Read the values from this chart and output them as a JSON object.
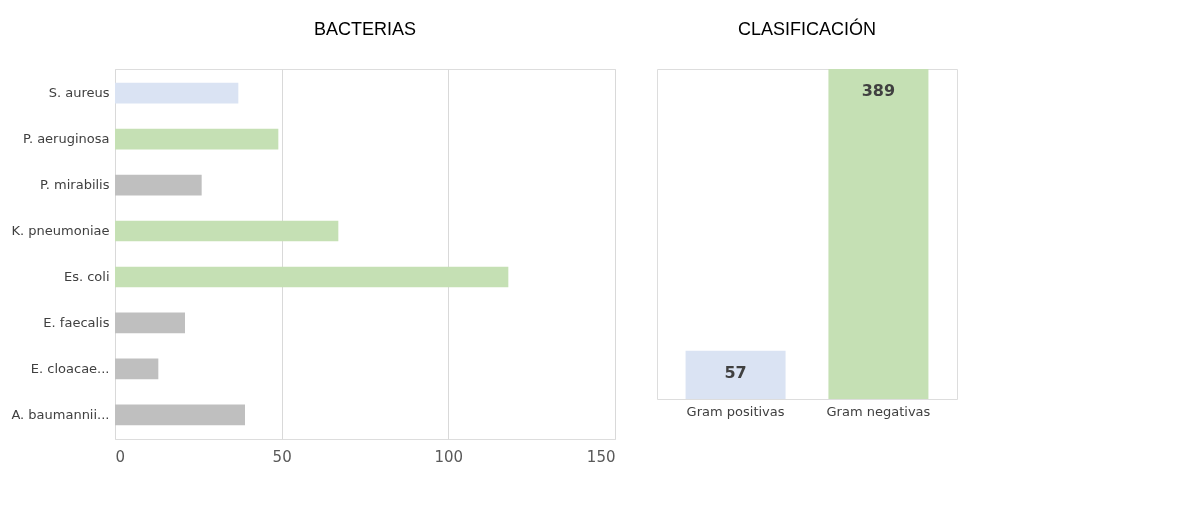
{
  "chart_data": [
    {
      "type": "bar",
      "title": "BACTERIAS",
      "orientation": "horizontal",
      "categories": [
        "S. aureus",
        "P. aeruginosa",
        "P. mirabilis",
        "K. pneumoniae",
        "Es. coli",
        "E. faecalis",
        "E. cloacae...",
        "A. baumannii..."
      ],
      "values": [
        37,
        49,
        26,
        67,
        118,
        21,
        13,
        39
      ],
      "colors": [
        "#dae3f3",
        "#c5e0b4",
        "#bfbfbf",
        "#c5e0b4",
        "#c5e0b4",
        "#bfbfbf",
        "#bfbfbf",
        "#bfbfbf"
      ],
      "xlim": [
        0,
        150
      ],
      "xticks": [
        0,
        50,
        100,
        150
      ],
      "grid": "x",
      "legend": false
    },
    {
      "type": "bar",
      "title": "CLASIFICACIÓN",
      "categories": [
        "Gram positivas",
        "Gram negativas"
      ],
      "values": [
        57,
        389
      ],
      "colors": [
        "#dae3f3",
        "#c5e0b4"
      ],
      "data_labels": true,
      "tick_labels": "x",
      "grid": false,
      "legend": false
    }
  ]
}
